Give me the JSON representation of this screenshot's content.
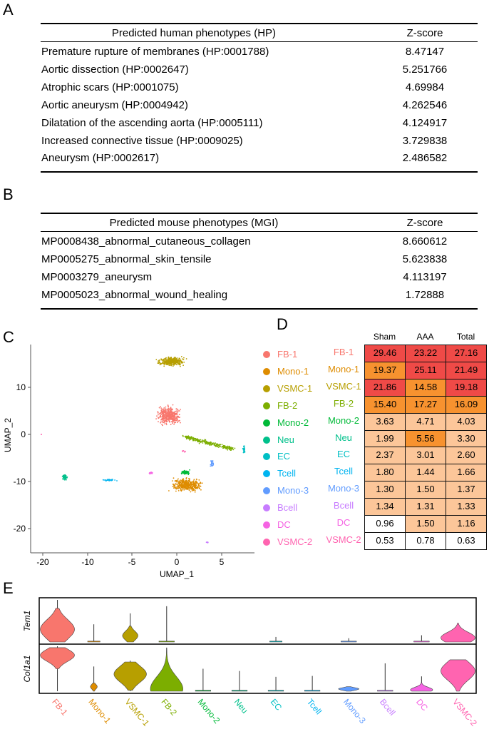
{
  "panels": {
    "a": "A",
    "b": "B",
    "c": "C",
    "d": "D",
    "e": "E"
  },
  "table_a": {
    "headers": [
      "Predicted human phenotypes (HP)",
      "Z-score"
    ],
    "rows": [
      [
        "Premature rupture of membranes (HP:0001788)",
        "8.47147"
      ],
      [
        "Aortic dissection (HP:0002647)",
        "5.251766"
      ],
      [
        "Atrophic scars (HP:0001075)",
        "4.69984"
      ],
      [
        "Aortic aneurysm (HP:0004942)",
        "4.262546"
      ],
      [
        "Dilatation of the ascending aorta (HP:0005111)",
        "4.124917"
      ],
      [
        "Increased connective tissue (HP:0009025)",
        "3.729838"
      ],
      [
        "Aneurysm (HP:0002617)",
        "2.486582"
      ]
    ]
  },
  "table_b": {
    "headers": [
      "Predicted mouse phenotypes (MGI)",
      "Z-score"
    ],
    "rows": [
      [
        "MP0008438_abnormal_cutaneous_collagen",
        "8.660612"
      ],
      [
        "MP0005275_abnormal_skin_tensile",
        "5.623838"
      ],
      [
        "MP0003279_aneurysm",
        "4.113197"
      ],
      [
        "MP0005023_abnormal_wound_healing",
        "1.72888"
      ]
    ]
  },
  "chart_data": [
    {
      "type": "scatter",
      "xlabel": "UMAP_1",
      "ylabel": "UMAP_2",
      "xticks": [
        "-20",
        "-10",
        "-5",
        "0",
        "5"
      ],
      "yticks": [
        "10",
        "0",
        "-10",
        "-20"
      ],
      "grid": false,
      "legend_position": "right",
      "clusters": [
        {
          "name": "FB-1",
          "color": "#F8766D",
          "center": [
            -0.9,
            4.0
          ]
        },
        {
          "name": "Mono-1",
          "color": "#DE8C00",
          "center": [
            1.2,
            -10.8
          ]
        },
        {
          "name": "VSMC-1",
          "color": "#B79F00",
          "center": [
            -0.6,
            15.5
          ]
        },
        {
          "name": "FB-2",
          "color": "#7CAE00",
          "center": [
            2.8,
            -1.7
          ]
        },
        {
          "name": "Mono-2",
          "color": "#00BA38",
          "center": [
            1.0,
            -8.0
          ]
        },
        {
          "name": "Neu",
          "color": "#00C08B",
          "center": [
            -15.1,
            -9.1
          ]
        },
        {
          "name": "EC",
          "color": "#00BFC4",
          "center": [
            7.5,
            -3.2
          ]
        },
        {
          "name": "Tcell",
          "color": "#00B4F0",
          "center": [
            -7.6,
            -9.7
          ]
        },
        {
          "name": "Mono-3",
          "color": "#619CFF",
          "center": [
            3.9,
            -6.2
          ]
        },
        {
          "name": "Bcell",
          "color": "#C77CFF",
          "center": [
            3.4,
            -22.9
          ]
        },
        {
          "name": "DC",
          "color": "#F564E3",
          "center": [
            -2.9,
            -8.2
          ]
        },
        {
          "name": "VSMC-2",
          "color": "#FF64B0",
          "center": [
            0.8,
            -3.6
          ]
        }
      ]
    },
    {
      "type": "heatmap",
      "columns": [
        "Sham",
        "AAA",
        "Total"
      ],
      "rows": [
        "FB-1",
        "Mono-1",
        "VSMC-1",
        "FB-2",
        "Mono-2",
        "Neu",
        "EC",
        "Tcell",
        "Mono-3",
        "Bcell",
        "DC",
        "VSMC-2"
      ],
      "values": [
        [
          "29.46",
          "23.22",
          "27.16"
        ],
        [
          "19.37",
          "25.11",
          "21.49"
        ],
        [
          "21.86",
          "14.58",
          "19.18"
        ],
        [
          "15.40",
          "17.27",
          "16.09"
        ],
        [
          "3.63",
          "4.71",
          "4.03"
        ],
        [
          "1.99",
          "5.56",
          "3.30"
        ],
        [
          "2.37",
          "3.01",
          "2.60"
        ],
        [
          "1.80",
          "1.44",
          "1.66"
        ],
        [
          "1.30",
          "1.50",
          "1.37"
        ],
        [
          "1.34",
          "1.31",
          "1.33"
        ],
        [
          "0.96",
          "1.50",
          "1.16"
        ],
        [
          "0.53",
          "0.78",
          "0.63"
        ]
      ],
      "fills": [
        [
          "r",
          "r",
          "r"
        ],
        [
          "o",
          "r",
          "r"
        ],
        [
          "r",
          "o",
          "r"
        ],
        [
          "o",
          "o",
          "o"
        ],
        [
          "p",
          "p",
          "p"
        ],
        [
          "p",
          "o",
          "p"
        ],
        [
          "p",
          "p",
          "p"
        ],
        [
          "p",
          "p",
          "p"
        ],
        [
          "p",
          "p",
          "p"
        ],
        [
          "p",
          "p",
          "p"
        ],
        [
          "w",
          "p",
          "p"
        ],
        [
          "w",
          "w",
          "w"
        ]
      ],
      "palette": {
        "r": "#EF4A47",
        "o": "#F7922F",
        "p": "#FCC699",
        "w": "#FFFFFF"
      }
    },
    {
      "type": "violin",
      "categories": [
        "FB-1",
        "Mono-1",
        "VSMC-1",
        "FB-2",
        "Mono-2",
        "Neu",
        "EC",
        "Tcell",
        "Mono-3",
        "Bcell",
        "DC",
        "VSMC-2"
      ],
      "genes": [
        "Tem1",
        "Col1a1"
      ],
      "note_scale": "expression normalized 0-1 per gene",
      "series": [
        {
          "name": "Tem1",
          "violins": [
            {
              "max": 1.0,
              "lo": 0,
              "hi": 0.8,
              "mode": 0.3,
              "width": 1.0
            },
            {
              "max": 0.42,
              "lo": 0,
              "hi": 0.02,
              "mode": 0,
              "width": 0.4
            },
            {
              "max": 0.68,
              "lo": 0,
              "hi": 0.38,
              "mode": 0.15,
              "width": 0.45
            },
            {
              "max": 0.85,
              "lo": 0,
              "hi": 0.02,
              "mode": 0,
              "width": 0.5
            },
            {
              "max": 0,
              "lo": 0,
              "hi": 0,
              "mode": 0,
              "width": 0
            },
            {
              "max": 0,
              "lo": 0,
              "hi": 0,
              "mode": 0,
              "width": 0
            },
            {
              "max": 0.12,
              "lo": 0,
              "hi": 0.02,
              "mode": 0,
              "width": 0.4
            },
            {
              "max": 0,
              "lo": 0,
              "hi": 0,
              "mode": 0,
              "width": 0
            },
            {
              "max": 0.09,
              "lo": 0,
              "hi": 0.02,
              "mode": 0,
              "width": 0.5
            },
            {
              "max": 0,
              "lo": 0,
              "hi": 0,
              "mode": 0,
              "width": 0
            },
            {
              "max": 0.16,
              "lo": 0,
              "hi": 0.02,
              "mode": 0,
              "width": 0.5
            },
            {
              "max": 0.45,
              "lo": 0,
              "hi": 0.45,
              "mode": 0.1,
              "width": 1.0
            }
          ]
        },
        {
          "name": "Col1a1",
          "violins": [
            {
              "max": 1.0,
              "lo": 0.5,
              "hi": 0.97,
              "mode": 0.8,
              "width": 1.0
            },
            {
              "max": 0.55,
              "lo": 0,
              "hi": 0.18,
              "mode": 0.1,
              "width": 0.2
            },
            {
              "max": 0.68,
              "lo": 0.02,
              "hi": 0.65,
              "mode": 0.38,
              "width": 0.95
            },
            {
              "max": 0.97,
              "lo": 0,
              "hi": 0.95,
              "mode": 0.05,
              "width": 0.95
            },
            {
              "max": 0.5,
              "lo": 0,
              "hi": 0.02,
              "mode": 0,
              "width": 0.5
            },
            {
              "max": 0.45,
              "lo": 0,
              "hi": 0.02,
              "mode": 0,
              "width": 0.5
            },
            {
              "max": 0.32,
              "lo": 0,
              "hi": 0.02,
              "mode": 0,
              "width": 0.5
            },
            {
              "max": 0.34,
              "lo": 0,
              "hi": 0.02,
              "mode": 0,
              "width": 0.5
            },
            {
              "max": 0.1,
              "lo": 0,
              "hi": 0.1,
              "mode": 0.05,
              "width": 0.6
            },
            {
              "max": 0.62,
              "lo": 0,
              "hi": 0.02,
              "mode": 0,
              "width": 0.5
            },
            {
              "max": 0.33,
              "lo": 0,
              "hi": 0.2,
              "mode": 0.03,
              "width": 0.65
            },
            {
              "max": 0.7,
              "lo": 0,
              "hi": 0.7,
              "mode": 0.45,
              "width": 1.0
            }
          ]
        }
      ]
    }
  ]
}
